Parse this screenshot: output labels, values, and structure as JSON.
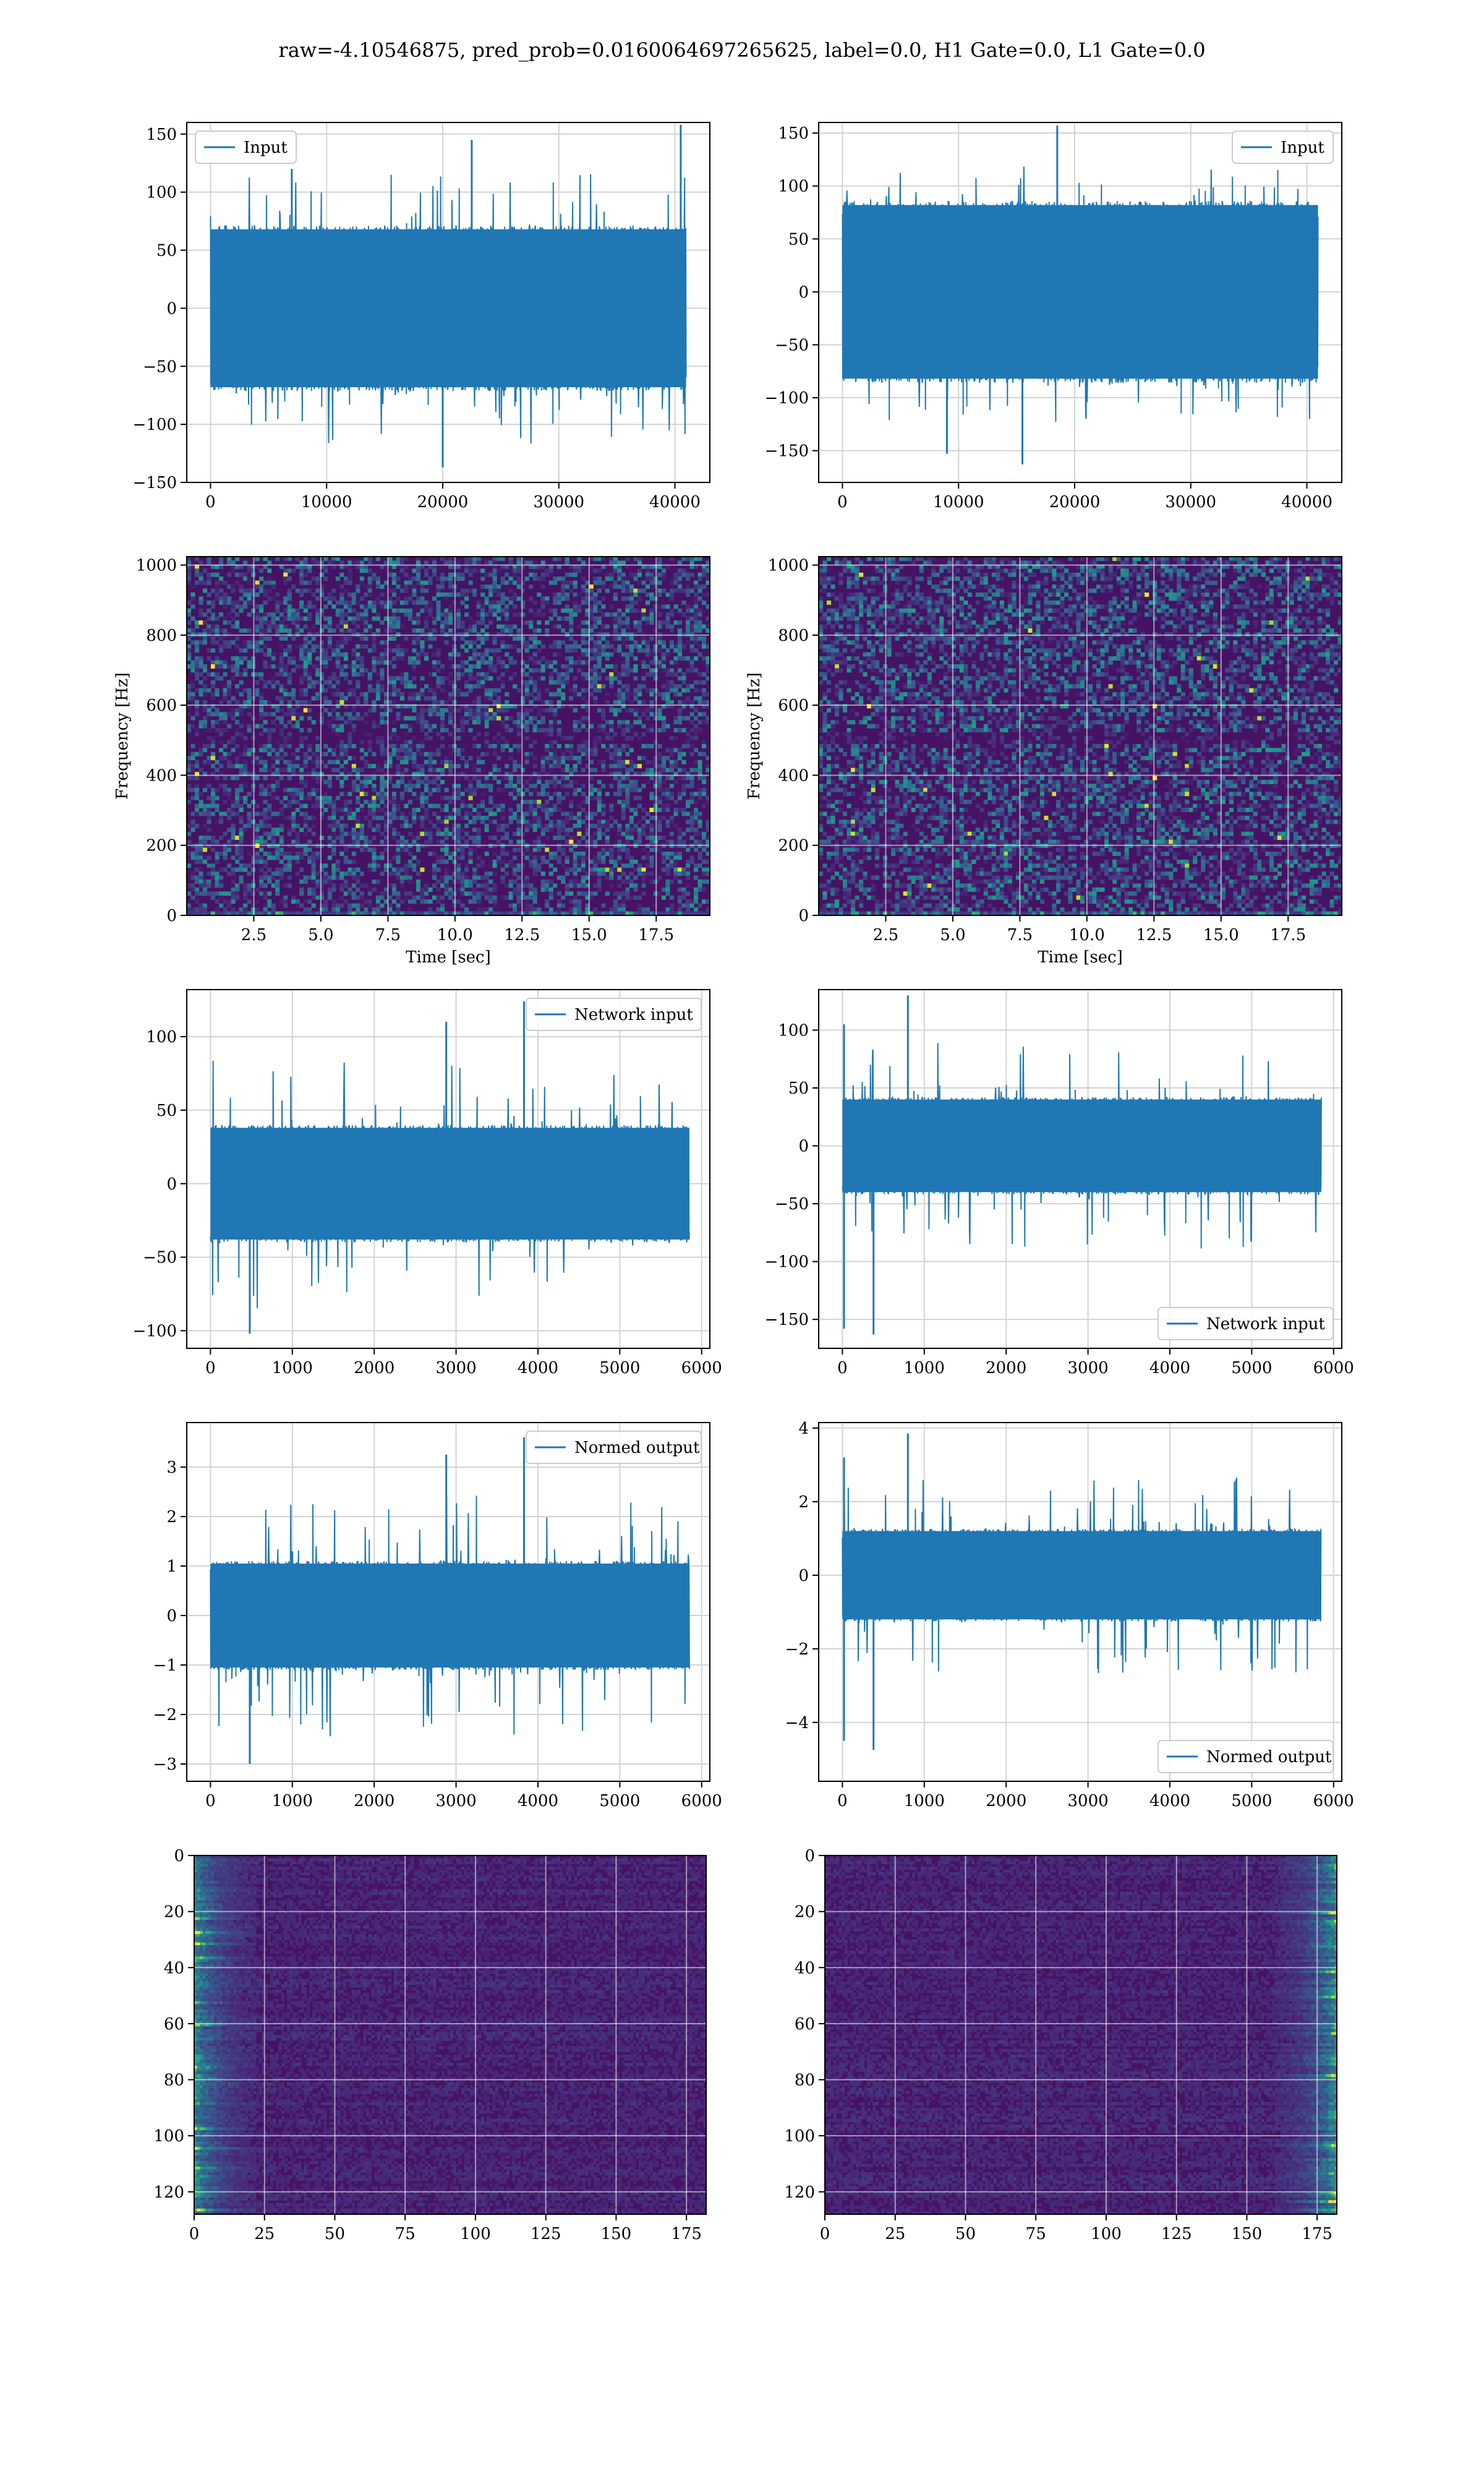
{
  "figure": {
    "title": "raw=-4.10546875, pred_prob=0.0160064697265625, label=0.0, H1 Gate=0.0, L1 Gate=0.0",
    "line_color": "#1f77b4",
    "grid_color": "#d3d3d3"
  },
  "chart_data": [
    {
      "id": "p1",
      "type": "line",
      "ylabel": "",
      "xlabel": "",
      "xlim": [
        -2048,
        43008
      ],
      "ylim": [
        -150,
        160
      ],
      "xticks": [
        0,
        10000,
        20000,
        30000,
        40000
      ],
      "xtick_labels": [
        "0",
        "10000",
        "20000",
        "30000",
        "40000"
      ],
      "yticks": [
        -150,
        -100,
        -50,
        0,
        50,
        100,
        150
      ],
      "ytick_labels": [
        "−150",
        "−100",
        "−50",
        "0",
        "50",
        "100",
        "150"
      ],
      "series": [
        {
          "name": "Input",
          "x_range": [
            0,
            40960
          ],
          "core_amplitude": 68,
          "max_peak": 158,
          "min_peak": -137,
          "peaks": [
            {
              "x": 40500,
              "y": 158
            },
            {
              "x": 22500,
              "y": 145
            },
            {
              "x": 20000,
              "y": -137
            },
            {
              "x": 7000,
              "y": 120
            }
          ]
        }
      ],
      "legend": "top-left"
    },
    {
      "id": "p2",
      "type": "line",
      "ylabel": "",
      "xlabel": "",
      "xlim": [
        -2048,
        43008
      ],
      "ylim": [
        -180,
        160
      ],
      "xticks": [
        0,
        10000,
        20000,
        30000,
        40000
      ],
      "xtick_labels": [
        "0",
        "10000",
        "20000",
        "30000",
        "40000"
      ],
      "yticks": [
        -150,
        -100,
        -50,
        0,
        50,
        100,
        150
      ],
      "ytick_labels": [
        "−150",
        "−100",
        "−50",
        "0",
        "50",
        "100",
        "150"
      ],
      "series": [
        {
          "name": "Input",
          "x_range": [
            0,
            40960
          ],
          "core_amplitude": 82,
          "max_peak": 157,
          "min_peak": -163,
          "peaks": [
            {
              "x": 18500,
              "y": 157
            },
            {
              "x": 15500,
              "y": -163
            },
            {
              "x": 9000,
              "y": -153
            }
          ]
        }
      ],
      "legend": "top-right"
    },
    {
      "id": "p3",
      "type": "heatmap",
      "xlabel": "Time [sec]",
      "ylabel": "Frequency [Hz]",
      "xlim": [
        0,
        19.5
      ],
      "ylim": [
        0,
        1024
      ],
      "xticks": [
        2.5,
        5.0,
        7.5,
        10.0,
        12.5,
        15.0,
        17.5
      ],
      "xtick_labels": [
        "2.5",
        "5.0",
        "7.5",
        "10.0",
        "12.5",
        "15.0",
        "17.5"
      ],
      "yticks": [
        0,
        200,
        400,
        600,
        800,
        1000
      ],
      "ytick_labels": [
        "0",
        "200",
        "400",
        "600",
        "800",
        "1000"
      ],
      "colormap": "viridis"
    },
    {
      "id": "p4",
      "type": "heatmap",
      "xlabel": "Time [sec]",
      "ylabel": "Frequency [Hz]",
      "xlim": [
        0,
        19.5
      ],
      "ylim": [
        0,
        1024
      ],
      "xticks": [
        2.5,
        5.0,
        7.5,
        10.0,
        12.5,
        15.0,
        17.5
      ],
      "xtick_labels": [
        "2.5",
        "5.0",
        "7.5",
        "10.0",
        "12.5",
        "15.0",
        "17.5"
      ],
      "yticks": [
        0,
        200,
        400,
        600,
        800,
        1000
      ],
      "ytick_labels": [
        "0",
        "200",
        "400",
        "600",
        "800",
        "1000"
      ],
      "colormap": "viridis"
    },
    {
      "id": "p5",
      "type": "line",
      "ylabel": "",
      "xlabel": "",
      "xlim": [
        -290,
        6100
      ],
      "ylim": [
        -112,
        132
      ],
      "xticks": [
        0,
        1000,
        2000,
        3000,
        4000,
        5000,
        6000
      ],
      "xtick_labels": [
        "0",
        "1000",
        "2000",
        "3000",
        "4000",
        "5000",
        "6000"
      ],
      "yticks": [
        -100,
        -50,
        0,
        50,
        100
      ],
      "ytick_labels": [
        "−100",
        "−50",
        "0",
        "50",
        "100"
      ],
      "series": [
        {
          "name": "Network input",
          "x_range": [
            0,
            5850
          ],
          "core_amplitude": 38,
          "max_peak": 124,
          "min_peak": -102,
          "peaks": [
            {
              "x": 3830,
              "y": 124
            },
            {
              "x": 2880,
              "y": 110
            },
            {
              "x": 480,
              "y": -102
            }
          ]
        }
      ],
      "legend": "top-right"
    },
    {
      "id": "p6",
      "type": "line",
      "ylabel": "",
      "xlabel": "",
      "xlim": [
        -290,
        6100
      ],
      "ylim": [
        -175,
        135
      ],
      "xticks": [
        0,
        1000,
        2000,
        3000,
        4000,
        5000,
        6000
      ],
      "xtick_labels": [
        "0",
        "1000",
        "2000",
        "3000",
        "4000",
        "5000",
        "6000"
      ],
      "yticks": [
        -150,
        -100,
        -50,
        0,
        50,
        100
      ],
      "ytick_labels": [
        "−150",
        "−100",
        "−50",
        "0",
        "50",
        "100"
      ],
      "series": [
        {
          "name": "Network input",
          "x_range": [
            0,
            5850
          ],
          "core_amplitude": 40,
          "max_peak": 130,
          "min_peak": -163,
          "peaks": [
            {
              "x": 800,
              "y": 130
            },
            {
              "x": 380,
              "y": -163
            },
            {
              "x": 20,
              "y": 105
            },
            {
              "x": 20,
              "y": -158
            }
          ]
        }
      ],
      "legend": "bottom-right"
    },
    {
      "id": "p7",
      "type": "line",
      "ylabel": "",
      "xlabel": "",
      "xlim": [
        -290,
        6100
      ],
      "ylim": [
        -3.35,
        3.9
      ],
      "xticks": [
        0,
        1000,
        2000,
        3000,
        4000,
        5000,
        6000
      ],
      "xtick_labels": [
        "0",
        "1000",
        "2000",
        "3000",
        "4000",
        "5000",
        "6000"
      ],
      "yticks": [
        -3,
        -2,
        -1,
        0,
        1,
        2,
        3
      ],
      "ytick_labels": [
        "−3",
        "−2",
        "−1",
        "0",
        "1",
        "2",
        "3"
      ],
      "series": [
        {
          "name": "Normed output",
          "x_range": [
            0,
            5850
          ],
          "core_amplitude": 1.05,
          "max_peak": 3.6,
          "min_peak": -3.0,
          "peaks": [
            {
              "x": 3830,
              "y": 3.6
            },
            {
              "x": 2880,
              "y": 3.25
            },
            {
              "x": 480,
              "y": -3.0
            }
          ]
        }
      ],
      "legend": "top-right"
    },
    {
      "id": "p8",
      "type": "line",
      "ylabel": "",
      "xlabel": "",
      "xlim": [
        -290,
        6100
      ],
      "ylim": [
        -5.6,
        4.15
      ],
      "xticks": [
        0,
        1000,
        2000,
        3000,
        4000,
        5000,
        6000
      ],
      "xtick_labels": [
        "0",
        "1000",
        "2000",
        "3000",
        "4000",
        "5000",
        "6000"
      ],
      "yticks": [
        -4,
        -2,
        0,
        2,
        4
      ],
      "ytick_labels": [
        "−4",
        "−2",
        "0",
        "2",
        "4"
      ],
      "series": [
        {
          "name": "Normed output",
          "x_range": [
            0,
            5850
          ],
          "core_amplitude": 1.2,
          "max_peak": 3.85,
          "min_peak": -4.75,
          "peaks": [
            {
              "x": 800,
              "y": 3.85
            },
            {
              "x": 380,
              "y": -4.75
            },
            {
              "x": 20,
              "y": 3.2
            },
            {
              "x": 20,
              "y": -4.5
            }
          ]
        }
      ],
      "legend": "bottom-right"
    },
    {
      "id": "p9",
      "type": "heatmap",
      "xlabel": "",
      "ylabel": "",
      "xlim": [
        0,
        182
      ],
      "ylim": [
        128,
        0
      ],
      "xticks": [
        0,
        25,
        50,
        75,
        100,
        125,
        150,
        175
      ],
      "xtick_labels": [
        "0",
        "25",
        "50",
        "75",
        "100",
        "125",
        "150",
        "175"
      ],
      "yticks": [
        0,
        20,
        40,
        60,
        80,
        100,
        120
      ],
      "ytick_labels": [
        "0",
        "20",
        "40",
        "60",
        "80",
        "100",
        "120"
      ],
      "colormap": "viridis",
      "hot_side": "left"
    },
    {
      "id": "p10",
      "type": "heatmap",
      "xlabel": "",
      "ylabel": "",
      "xlim": [
        0,
        182
      ],
      "ylim": [
        128,
        0
      ],
      "xticks": [
        0,
        25,
        50,
        75,
        100,
        125,
        150,
        175
      ],
      "xtick_labels": [
        "0",
        "25",
        "50",
        "75",
        "100",
        "125",
        "150",
        "175"
      ],
      "yticks": [
        0,
        20,
        40,
        60,
        80,
        100,
        120
      ],
      "ytick_labels": [
        "0",
        "20",
        "40",
        "60",
        "80",
        "100",
        "120"
      ],
      "colormap": "viridis",
      "hot_side": "right"
    }
  ]
}
